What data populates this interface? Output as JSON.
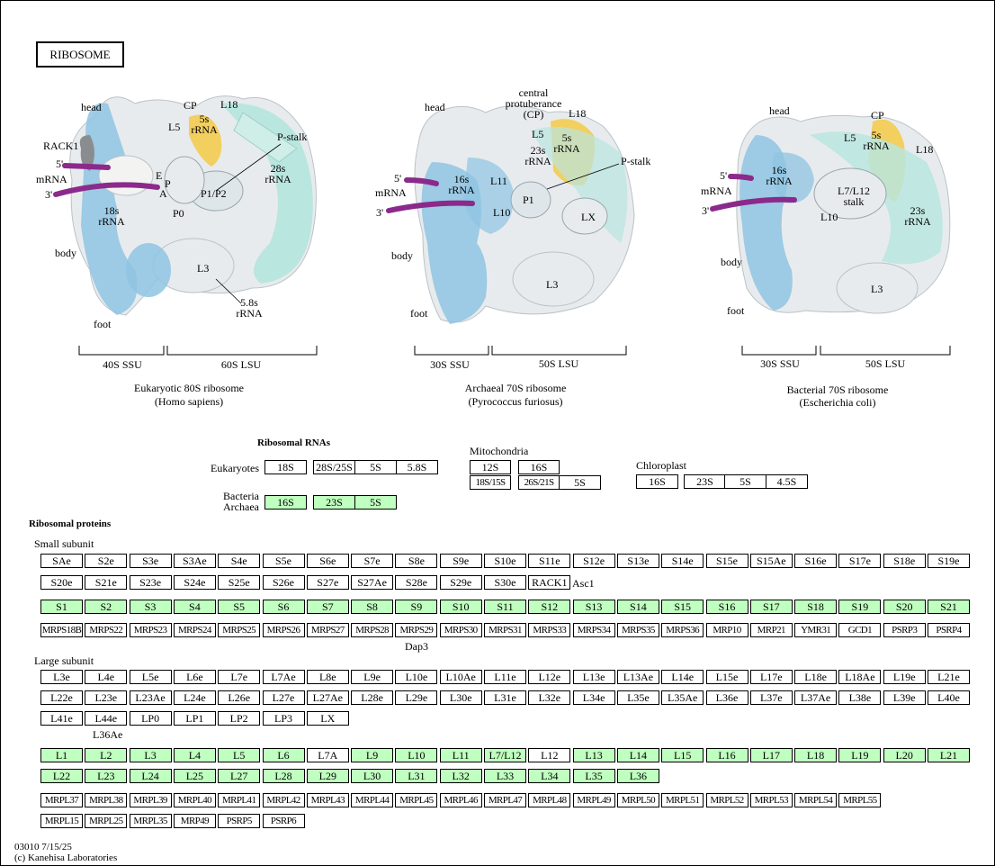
{
  "map_title": "RIBOSOME",
  "colors": {
    "green_box": "#bfffbf",
    "blue": "#8fc4e2",
    "teal": "#b9e6df",
    "yellow": "#f2cf5e",
    "grey": "#e8ebed",
    "purple": "#8b2a8a"
  },
  "ribosomes": [
    {
      "name": "Eukaryotic 80S ribosome",
      "organism": "(Homo sapiens)",
      "ssu": "40S SSU",
      "lsu": "60S LSU",
      "labels": [
        "head",
        "CP",
        "L18",
        "L5",
        "5s rRNA",
        "P-stalk",
        "28s rRNA",
        "RACK1",
        "5'",
        "mRNA",
        "3'",
        "E",
        "P",
        "A",
        "P1/P2",
        "18s rRNA",
        "P0",
        "body",
        "L3",
        "5.8s rRNA",
        "foot"
      ]
    },
    {
      "name": "Archaeal 70S ribosome",
      "organism": "(Pyrococcus furiosus)",
      "ssu": "30S SSU",
      "lsu": "50S LSU",
      "labels": [
        "head",
        "central protuberance (CP)",
        "L18",
        "L5",
        "5s rRNA",
        "23s rRNA",
        "P-stalk",
        "5'",
        "mRNA",
        "3'",
        "16s rRNA",
        "L11",
        "P1",
        "L10",
        "LX",
        "body",
        "L3",
        "foot"
      ]
    },
    {
      "name": "Bacterial 70S ribosome",
      "organism": "(Escherichia coli)",
      "ssu": "30S SSU",
      "lsu": "50S LSU",
      "labels": [
        "head",
        "CP",
        "L5",
        "5s rRNA",
        "L18",
        "5'",
        "mRNA",
        "3'",
        "16s rRNA",
        "L7/L12 stalk",
        "L10",
        "23s rRNA",
        "body",
        "L3",
        "foot"
      ]
    }
  ],
  "rrna": {
    "title": "Ribosomal RNAs",
    "eukaryotes_label": "Eukaryotes",
    "eukaryotes": [
      "18S",
      "28S/25S",
      "5S",
      "5.8S"
    ],
    "bacteria_label": "Bacteria Archaea",
    "bacteria": [
      "16S",
      "23S",
      "5S"
    ],
    "mito_label": "Mitochondria",
    "mito": [
      "12S",
      "16S",
      "18S/15S",
      "26S/21S",
      "5S"
    ],
    "chloro_label": "Chloroplast",
    "chloro": [
      "16S",
      "23S",
      "5S",
      "4.5S"
    ]
  },
  "proteins": {
    "title": "Ribosomal proteins",
    "small_label": "Small subunit",
    "small_euk_row1": [
      "SAe",
      "S2e",
      "S3e",
      "S3Ae",
      "S4e",
      "S5e",
      "S6e",
      "S7e",
      "S8e",
      "S9e",
      "S10e",
      "S11e",
      "S12e",
      "S13e",
      "S14e",
      "S15e",
      "S15Ae",
      "S16e",
      "S17e",
      "S18e",
      "S19e"
    ],
    "small_euk_row2": [
      "S20e",
      "S21e",
      "S23e",
      "S24e",
      "S25e",
      "S26e",
      "S27e",
      "S27Ae",
      "S28e",
      "S29e",
      "S30e",
      "RACK1"
    ],
    "asc1": "Asc1",
    "small_bac": [
      "S1",
      "S2",
      "S3",
      "S4",
      "S5",
      "S6",
      "S7",
      "S8",
      "S9",
      "S10",
      "S11",
      "S12",
      "S13",
      "S14",
      "S15",
      "S16",
      "S17",
      "S18",
      "S19",
      "S20",
      "S21"
    ],
    "small_mito": [
      "MRPS18B",
      "MRPS22",
      "MRPS23",
      "MRPS24",
      "MRPS25",
      "MRPS26",
      "MRPS27",
      "MRPS28",
      "MRPS29",
      "MRPS30",
      "MRPS31",
      "MRPS33",
      "MRPS34",
      "MRPS35",
      "MRPS36",
      "MRP10",
      "MRP21",
      "YMR31",
      "GCD1",
      "PSRP3",
      "PSRP4"
    ],
    "dap3": "Dap3",
    "large_label": "Large subunit",
    "large_euk_row1": [
      "L3e",
      "L4e",
      "L5e",
      "L6e",
      "L7e",
      "L7Ae",
      "L8e",
      "L9e",
      "L10e",
      "L10Ae",
      "L11e",
      "L12e",
      "L13e",
      "L13Ae",
      "L14e",
      "L15e",
      "L17e",
      "L18e",
      "L18Ae",
      "L19e",
      "L21e"
    ],
    "large_euk_row2": [
      "L22e",
      "L23e",
      "L23Ae",
      "L24e",
      "L26e",
      "L27e",
      "L27Ae",
      "L28e",
      "L29e",
      "L30e",
      "L31e",
      "L32e",
      "L34e",
      "L35e",
      "L35Ae",
      "L36e",
      "L37e",
      "L37Ae",
      "L38e",
      "L39e",
      "L40e"
    ],
    "large_euk_row3": [
      "L41e",
      "L44e",
      "LP0",
      "LP1",
      "LP2",
      "LP3",
      "LX"
    ],
    "l36ae": "L36Ae",
    "large_bac_row1": [
      "L1",
      "L2",
      "L3",
      "L4",
      "L5",
      "L6",
      "L7A",
      "L9",
      "L10",
      "L11",
      "L7/L12",
      "L12",
      "L13",
      "L14",
      "L15",
      "L16",
      "L17",
      "L18",
      "L19",
      "L20",
      "L21"
    ],
    "large_bac_white": [
      "L7A",
      "L12"
    ],
    "large_bac_row2": [
      "L22",
      "L23",
      "L24",
      "L25",
      "L27",
      "L28",
      "L29",
      "L30",
      "L31",
      "L32",
      "L33",
      "L34",
      "L35",
      "L36"
    ],
    "large_mito_row1": [
      "MRPL37",
      "MRPL38",
      "MRPL39",
      "MRPL40",
      "MRPL41",
      "MRPL42",
      "MRPL43",
      "MRPL44",
      "MRPL45",
      "MRPL46",
      "MRPL47",
      "MRPL48",
      "MRPL49",
      "MRPL50",
      "MRPL51",
      "MRPL52",
      "MRPL53",
      "MRPL54",
      "MRPL55"
    ],
    "large_mito_row2": [
      "MRPL15",
      "MRPL25",
      "MRPL35",
      "MRP49",
      "PSRP5",
      "PSRP6"
    ]
  },
  "footer": {
    "id_date": "03010 7/15/25",
    "credit": "(c) Kanehisa Laboratories"
  }
}
